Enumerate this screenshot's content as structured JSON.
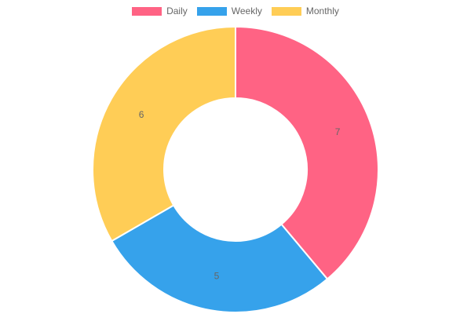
{
  "chart_data": {
    "type": "pie",
    "subtype": "doughnut",
    "categories": [
      "Daily",
      "Weekly",
      "Monthly"
    ],
    "values": [
      7,
      5,
      6
    ],
    "colors": [
      "#ff6384",
      "#36a2eb",
      "#ffcd56"
    ],
    "legend_position": "top",
    "show_value_labels": true
  }
}
